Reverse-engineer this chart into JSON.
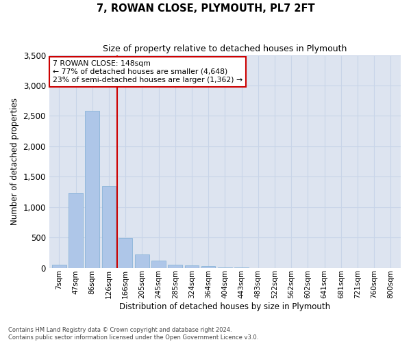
{
  "title": "7, ROWAN CLOSE, PLYMOUTH, PL7 2FT",
  "subtitle": "Size of property relative to detached houses in Plymouth",
  "xlabel": "Distribution of detached houses by size in Plymouth",
  "ylabel": "Number of detached properties",
  "bar_labels": [
    "7sqm",
    "47sqm",
    "86sqm",
    "126sqm",
    "166sqm",
    "205sqm",
    "245sqm",
    "285sqm",
    "324sqm",
    "364sqm",
    "404sqm",
    "443sqm",
    "483sqm",
    "522sqm",
    "562sqm",
    "602sqm",
    "641sqm",
    "681sqm",
    "721sqm",
    "760sqm",
    "800sqm"
  ],
  "bar_values": [
    50,
    1230,
    2580,
    1340,
    490,
    220,
    120,
    50,
    35,
    25,
    10,
    5,
    0,
    0,
    0,
    0,
    0,
    0,
    0,
    0,
    0
  ],
  "bar_color": "#aec6e8",
  "bar_edgecolor": "#8ab4d8",
  "vline_x": 3.5,
  "vline_color": "#cc0000",
  "annotation_text": "7 ROWAN CLOSE: 148sqm\n← 77% of detached houses are smaller (4,648)\n23% of semi-detached houses are larger (1,362) →",
  "annotation_box_edgecolor": "#cc0000",
  "ylim": [
    0,
    3500
  ],
  "yticks": [
    0,
    500,
    1000,
    1500,
    2000,
    2500,
    3000,
    3500
  ],
  "grid_color": "#c8d4e8",
  "bg_color": "#dde4f0",
  "footer_line1": "Contains HM Land Registry data © Crown copyright and database right 2024.",
  "footer_line2": "Contains public sector information licensed under the Open Government Licence v3.0."
}
